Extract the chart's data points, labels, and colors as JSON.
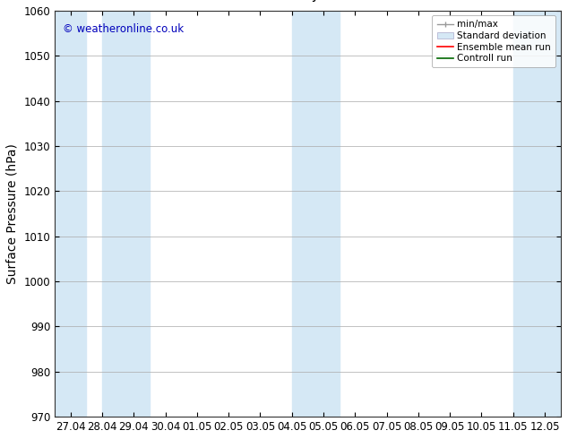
{
  "ylabel": "Surface Pressure (hPa)",
  "ylim": [
    970,
    1060
  ],
  "yticks": [
    970,
    980,
    990,
    1000,
    1010,
    1020,
    1030,
    1040,
    1050,
    1060
  ],
  "x_tick_labels": [
    "27.04",
    "28.04",
    "29.04",
    "30.04",
    "01.05",
    "02.05",
    "03.05",
    "04.05",
    "05.05",
    "06.05",
    "07.05",
    "08.05",
    "09.05",
    "10.05",
    "11.05",
    "12.05"
  ],
  "watermark": "© weatheronline.co.uk",
  "watermark_color": "#0000bb",
  "bg_color": "#ffffff",
  "plot_bg_color": "#ffffff",
  "band_color": "#d5e8f5",
  "legend_labels": [
    "min/max",
    "Standard deviation",
    "Ensemble mean run",
    "Controll run"
  ],
  "title_fontsize": 11,
  "tick_fontsize": 8.5,
  "ylabel_fontsize": 10
}
